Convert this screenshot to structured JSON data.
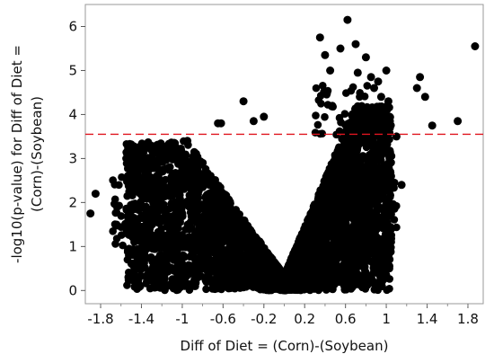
{
  "chart_data": {
    "type": "scatter",
    "title": "",
    "xlabel": "Diff of Diet = (Corn)-(Soybean)",
    "ylabel_lines": [
      "-log10(p-value) for Diff of Diet =",
      "(Corn)-(Soybean)"
    ],
    "xlim": [
      -1.95,
      1.95
    ],
    "ylim": [
      -0.3,
      6.5
    ],
    "x_ticks": [
      -1.8,
      -1.4,
      -1,
      -0.6,
      -0.2,
      0.2,
      0.6,
      1,
      1.4,
      1.8
    ],
    "x_tick_labels": [
      "-1.8",
      "-1.4",
      "-1",
      "-0.6",
      "-0.2",
      "0.2",
      "0.6",
      "1",
      "1.4",
      "1.8"
    ],
    "y_ticks": [
      0,
      1,
      2,
      3,
      4,
      5,
      6
    ],
    "y_tick_labels": [
      "0",
      "1",
      "2",
      "3",
      "4",
      "5",
      "6"
    ],
    "threshold_line": {
      "y": 3.55,
      "style": "dashed",
      "color": "#e0151f"
    },
    "point_color": "#000000",
    "grid": false,
    "legend": "none",
    "point_count_note": "approximate; dense cloud",
    "highlighted_outliers": [
      [
        -1.9,
        1.75
      ],
      [
        -1.85,
        2.2
      ],
      [
        -1.4,
        2.85
      ],
      [
        -1.25,
        2.6
      ],
      [
        -0.95,
        3.4
      ],
      [
        -0.65,
        3.8
      ],
      [
        -0.62,
        3.8
      ],
      [
        -0.4,
        4.3
      ],
      [
        -0.3,
        3.85
      ],
      [
        -0.2,
        3.95
      ],
      [
        0.35,
        5.75
      ],
      [
        0.4,
        5.35
      ],
      [
        0.45,
        5.0
      ],
      [
        0.55,
        5.5
      ],
      [
        0.62,
        6.15
      ],
      [
        0.7,
        5.6
      ],
      [
        0.72,
        4.95
      ],
      [
        0.8,
        5.3
      ],
      [
        0.85,
        4.85
      ],
      [
        0.88,
        4.6
      ],
      [
        0.92,
        4.75
      ],
      [
        0.95,
        4.4
      ],
      [
        1.0,
        5.0
      ],
      [
        1.02,
        4.3
      ],
      [
        1.1,
        3.5
      ],
      [
        1.15,
        2.4
      ],
      [
        1.3,
        4.6
      ],
      [
        1.33,
        4.85
      ],
      [
        1.38,
        4.4
      ],
      [
        1.45,
        3.75
      ],
      [
        1.7,
        3.85
      ],
      [
        1.87,
        5.55
      ]
    ]
  }
}
